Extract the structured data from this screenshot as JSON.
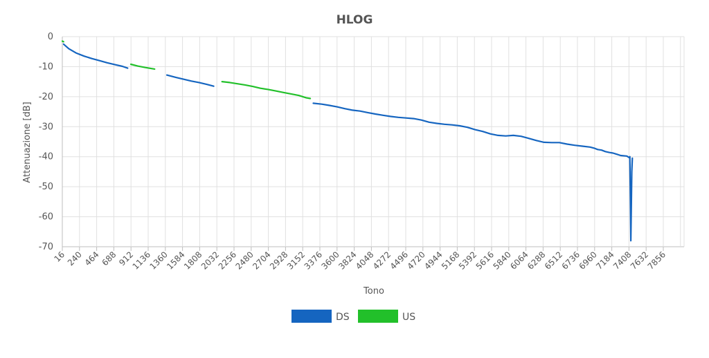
{
  "chart_data": {
    "type": "line",
    "title": "HLOG",
    "xlabel": "Tono",
    "ylabel": "Attenuazione [dB]",
    "xlim": [
      16,
      8000
    ],
    "ylim": [
      -70,
      0
    ],
    "x_ticks": [
      16,
      240,
      464,
      688,
      912,
      1136,
      1360,
      1584,
      1808,
      2032,
      2256,
      2480,
      2704,
      2928,
      3152,
      3376,
      3600,
      3824,
      4048,
      4272,
      4496,
      4720,
      4944,
      5168,
      5392,
      5616,
      5840,
      6064,
      6288,
      6512,
      6736,
      6960,
      7184,
      7408,
      7632,
      7856
    ],
    "y_ticks": [
      0,
      -10,
      -20,
      -30,
      -40,
      -50,
      -60,
      -70
    ],
    "grid": true,
    "legend_position": "bottom",
    "colors": {
      "DS": "#1565c0",
      "US": "#22c02a"
    },
    "series": [
      {
        "name": "DS",
        "segments": [
          [
            [
              33,
              -2.5
            ],
            [
              100,
              -4
            ],
            [
              200,
              -5.5
            ],
            [
              300,
              -6.5
            ],
            [
              400,
              -7.3
            ],
            [
              500,
              -8
            ],
            [
              600,
              -8.7
            ],
            [
              700,
              -9.3
            ],
            [
              800,
              -9.9
            ],
            [
              868,
              -10.5
            ]
          ],
          [
            [
              1380,
              -12.8
            ],
            [
              1500,
              -13.6
            ],
            [
              1600,
              -14.2
            ],
            [
              1700,
              -14.8
            ],
            [
              1800,
              -15.3
            ],
            [
              1900,
              -15.9
            ],
            [
              1990,
              -16.5
            ]
          ],
          [
            [
              3290,
              -22.2
            ],
            [
              3400,
              -22.5
            ],
            [
              3500,
              -22.9
            ],
            [
              3600,
              -23.4
            ],
            [
              3700,
              -24
            ],
            [
              3800,
              -24.5
            ],
            [
              3900,
              -24.8
            ],
            [
              4000,
              -25.3
            ],
            [
              4100,
              -25.8
            ],
            [
              4200,
              -26.2
            ],
            [
              4300,
              -26.6
            ],
            [
              4400,
              -26.9
            ],
            [
              4500,
              -27.1
            ],
            [
              4600,
              -27.3
            ],
            [
              4700,
              -27.8
            ],
            [
              4800,
              -28.5
            ],
            [
              4900,
              -28.9
            ],
            [
              5000,
              -29.2
            ],
            [
              5100,
              -29.4
            ],
            [
              5200,
              -29.7
            ],
            [
              5300,
              -30.2
            ],
            [
              5400,
              -31
            ],
            [
              5500,
              -31.6
            ],
            [
              5600,
              -32.4
            ],
            [
              5700,
              -32.9
            ],
            [
              5800,
              -33.1
            ],
            [
              5900,
              -32.9
            ],
            [
              6000,
              -33.2
            ],
            [
              6100,
              -33.9
            ],
            [
              6200,
              -34.6
            ],
            [
              6300,
              -35.2
            ],
            [
              6400,
              -35.3
            ],
            [
              6500,
              -35.3
            ],
            [
              6600,
              -35.8
            ],
            [
              6700,
              -36.2
            ],
            [
              6800,
              -36.5
            ],
            [
              6900,
              -36.8
            ],
            [
              6960,
              -37.2
            ],
            [
              7000,
              -37.6
            ],
            [
              7050,
              -37.8
            ],
            [
              7100,
              -38.3
            ],
            [
              7150,
              -38.6
            ],
            [
              7200,
              -38.8
            ],
            [
              7250,
              -39.2
            ],
            [
              7300,
              -39.6
            ],
            [
              7380,
              -39.8
            ],
            [
              7410,
              -40.3
            ],
            [
              7420,
              -40
            ],
            [
              7432,
              -68
            ],
            [
              7445,
              -45
            ],
            [
              7452,
              -40.5
            ]
          ]
        ]
      },
      {
        "name": "US",
        "segments": [
          [
            [
              16,
              -1.5
            ],
            [
              32,
              -1.7
            ]
          ],
          [
            [
              910,
              -9.2
            ],
            [
              1000,
              -9.8
            ],
            [
              1100,
              -10.3
            ],
            [
              1220,
              -10.8
            ]
          ],
          [
            [
              2100,
              -15
            ],
            [
              2200,
              -15.3
            ],
            [
              2300,
              -15.7
            ],
            [
              2400,
              -16.1
            ],
            [
              2500,
              -16.6
            ],
            [
              2600,
              -17.2
            ],
            [
              2700,
              -17.6
            ],
            [
              2800,
              -18.1
            ],
            [
              2900,
              -18.6
            ],
            [
              3000,
              -19.1
            ],
            [
              3100,
              -19.6
            ],
            [
              3200,
              -20.4
            ],
            [
              3250,
              -20.6
            ]
          ]
        ]
      }
    ]
  }
}
